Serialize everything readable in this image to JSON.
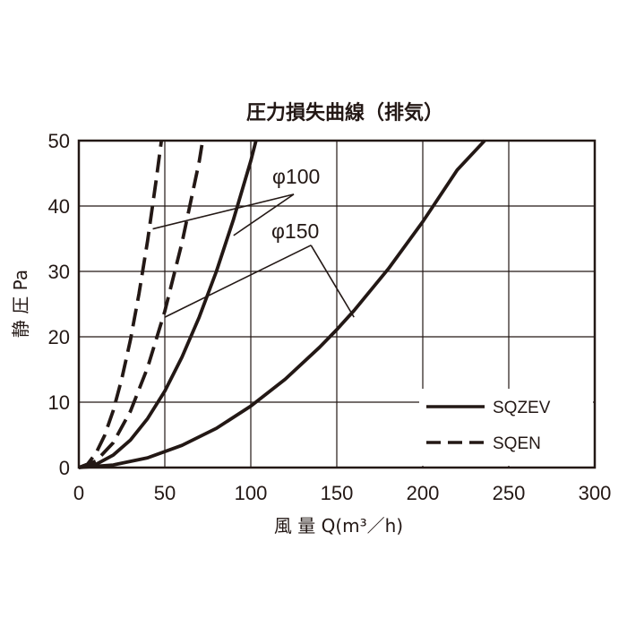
{
  "chart_data": {
    "type": "line",
    "title": "圧力損失曲線（排気）",
    "xlabel": "風 量 Q(m³／h)",
    "ylabel": "静 圧 Pa",
    "xlim": [
      0,
      300
    ],
    "ylim": [
      0,
      50
    ],
    "x_ticks": [
      "0",
      "50",
      "100",
      "150",
      "200",
      "250",
      "300"
    ],
    "y_ticks": [
      "0",
      "10",
      "20",
      "30",
      "40",
      "50"
    ],
    "grid": true,
    "legend_position": "bottom-right",
    "legend": [
      {
        "label": "SQZEV",
        "style": "solid"
      },
      {
        "label": "SQEN",
        "style": "dashed"
      }
    ],
    "annotations": [
      {
        "text": "φ100"
      },
      {
        "text": "φ150"
      }
    ],
    "series": [
      {
        "name": "SQZEV",
        "diameter": "φ100",
        "style": "solid",
        "x": [
          0,
          10,
          20,
          30,
          40,
          50,
          60,
          70,
          80,
          90,
          100,
          103
        ],
        "y": [
          0,
          0.5,
          1.9,
          4.2,
          7.5,
          11.7,
          16.9,
          23.0,
          30.0,
          38.0,
          46.9,
          50
        ]
      },
      {
        "name": "SQZEV",
        "diameter": "φ150",
        "style": "solid",
        "x": [
          0,
          20,
          40,
          60,
          80,
          100,
          120,
          140,
          150,
          160,
          180,
          200,
          220,
          236
        ],
        "y": [
          0,
          0.4,
          1.5,
          3.4,
          6.0,
          9.4,
          13.5,
          18.4,
          21.1,
          24.0,
          30.4,
          37.6,
          45.5,
          50
        ]
      },
      {
        "name": "SQEN",
        "diameter": "φ100",
        "style": "dashed",
        "x": [
          0,
          5,
          10,
          15,
          20,
          25,
          30,
          35,
          40,
          45,
          48
        ],
        "y": [
          0,
          0.5,
          2.2,
          4.9,
          8.7,
          13.6,
          19.5,
          26.6,
          34.7,
          44.0,
          50
        ]
      },
      {
        "name": "SQEN",
        "diameter": "φ150",
        "style": "dashed",
        "x": [
          0,
          10,
          20,
          30,
          40,
          50,
          60,
          70,
          72
        ],
        "y": [
          0,
          1.0,
          3.8,
          8.6,
          15.3,
          23.9,
          34.4,
          46.8,
          50
        ]
      }
    ]
  }
}
